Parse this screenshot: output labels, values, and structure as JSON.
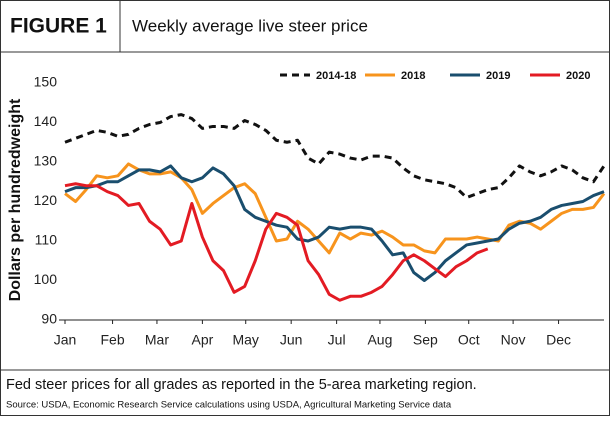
{
  "chart_data": {
    "type": "line",
    "figure_label": "FIGURE 1",
    "title": "Weekly average live steer price",
    "ylabel": "Dollars per hundredweight",
    "caption": "Fed steer prices for all grades as reported in the 5-area marketing region.",
    "source": "Source: USDA, Economic Research Service calculations using USDA, Agricultural Marketing Service data",
    "x": [
      1,
      2,
      3,
      4,
      5,
      6,
      7,
      8,
      9,
      10,
      11,
      12,
      13,
      14,
      15,
      16,
      17,
      18,
      19,
      20,
      21,
      22,
      23,
      24,
      25,
      26,
      27,
      28,
      29,
      30,
      31,
      32,
      33,
      34,
      35,
      36,
      37,
      38,
      39,
      40,
      41,
      42,
      43,
      44,
      45,
      46,
      47,
      48,
      49,
      50,
      51,
      52
    ],
    "xlim": [
      1,
      52
    ],
    "xticks": [
      {
        "value": 1,
        "label": "Jan"
      },
      {
        "value": 5.5,
        "label": "Feb"
      },
      {
        "value": 9.7,
        "label": "Mar"
      },
      {
        "value": 14,
        "label": "Apr"
      },
      {
        "value": 18.1,
        "label": "May"
      },
      {
        "value": 22.4,
        "label": "Jun"
      },
      {
        "value": 26.7,
        "label": "Jul"
      },
      {
        "value": 30.8,
        "label": "Aug"
      },
      {
        "value": 35.1,
        "label": "Sep"
      },
      {
        "value": 39.2,
        "label": "Oct"
      },
      {
        "value": 43.4,
        "label": "Nov"
      },
      {
        "value": 47.7,
        "label": "Dec"
      }
    ],
    "ylim": [
      90,
      150
    ],
    "yticks": [
      90,
      100,
      110,
      120,
      130,
      140,
      150
    ],
    "grid": false,
    "legend": "top",
    "series": [
      {
        "name": "2014-18",
        "color": "#111111",
        "dashed": true,
        "values": [
          135,
          136,
          137,
          138,
          137.5,
          136.5,
          137,
          138.5,
          139.5,
          140,
          141.5,
          142,
          141,
          138.5,
          139,
          139,
          138.5,
          140.5,
          139.5,
          138,
          135.5,
          135,
          135.5,
          131,
          129.5,
          132.5,
          132,
          131,
          130.5,
          131.5,
          131.5,
          131,
          128.5,
          126.5,
          125.5,
          125,
          124.5,
          123.5,
          121,
          122,
          123,
          123.5,
          126,
          129,
          127.5,
          126.5,
          127.5,
          129,
          128,
          126,
          125,
          129
        ]
      },
      {
        "name": "2018",
        "color": "#f7941d",
        "dashed": false,
        "values": [
          122,
          120,
          123,
          126.5,
          126,
          126.5,
          129.5,
          128,
          127,
          127,
          127.5,
          126,
          123,
          117,
          119.5,
          121.5,
          123.5,
          124.5,
          122,
          116,
          110,
          110.5,
          115,
          113,
          110,
          107,
          112,
          110.5,
          112,
          111.5,
          112.5,
          111,
          109,
          109,
          107.5,
          107,
          110.5,
          110.5,
          110.5,
          111,
          110.5,
          110,
          114,
          115,
          114.5,
          113,
          115,
          117,
          118,
          118,
          118.5,
          122
        ]
      },
      {
        "name": "2019",
        "color": "#1a4e6e",
        "dashed": false,
        "values": [
          122.5,
          123.5,
          123.5,
          124,
          125,
          125,
          126.5,
          128,
          128,
          127.5,
          129,
          126,
          125,
          126,
          128.5,
          127,
          124,
          118,
          116,
          115,
          114,
          113.5,
          110.5,
          110,
          111,
          113.5,
          113,
          113.5,
          113.5,
          113,
          110,
          106.5,
          107,
          102,
          100,
          102,
          105,
          107,
          109,
          109.5,
          110,
          110.5,
          113,
          114.5,
          115,
          116,
          118,
          119,
          119.5,
          120,
          121.5,
          122.5
        ]
      },
      {
        "name": "2020",
        "color": "#e31b23",
        "dashed": false,
        "values": [
          124,
          124.5,
          124,
          124,
          122.5,
          121.5,
          119,
          119.5,
          115,
          113,
          109,
          110,
          119.5,
          111,
          105,
          102.5,
          97,
          98.5,
          105,
          113,
          117,
          116,
          114,
          105,
          101.5,
          96.5,
          95,
          96,
          96,
          97,
          98.5,
          101.5,
          105,
          106.5,
          105,
          103,
          101,
          103.5,
          105,
          107,
          108,
          null,
          null,
          null,
          null,
          null,
          null,
          null,
          null,
          null,
          null,
          null
        ]
      }
    ]
  }
}
